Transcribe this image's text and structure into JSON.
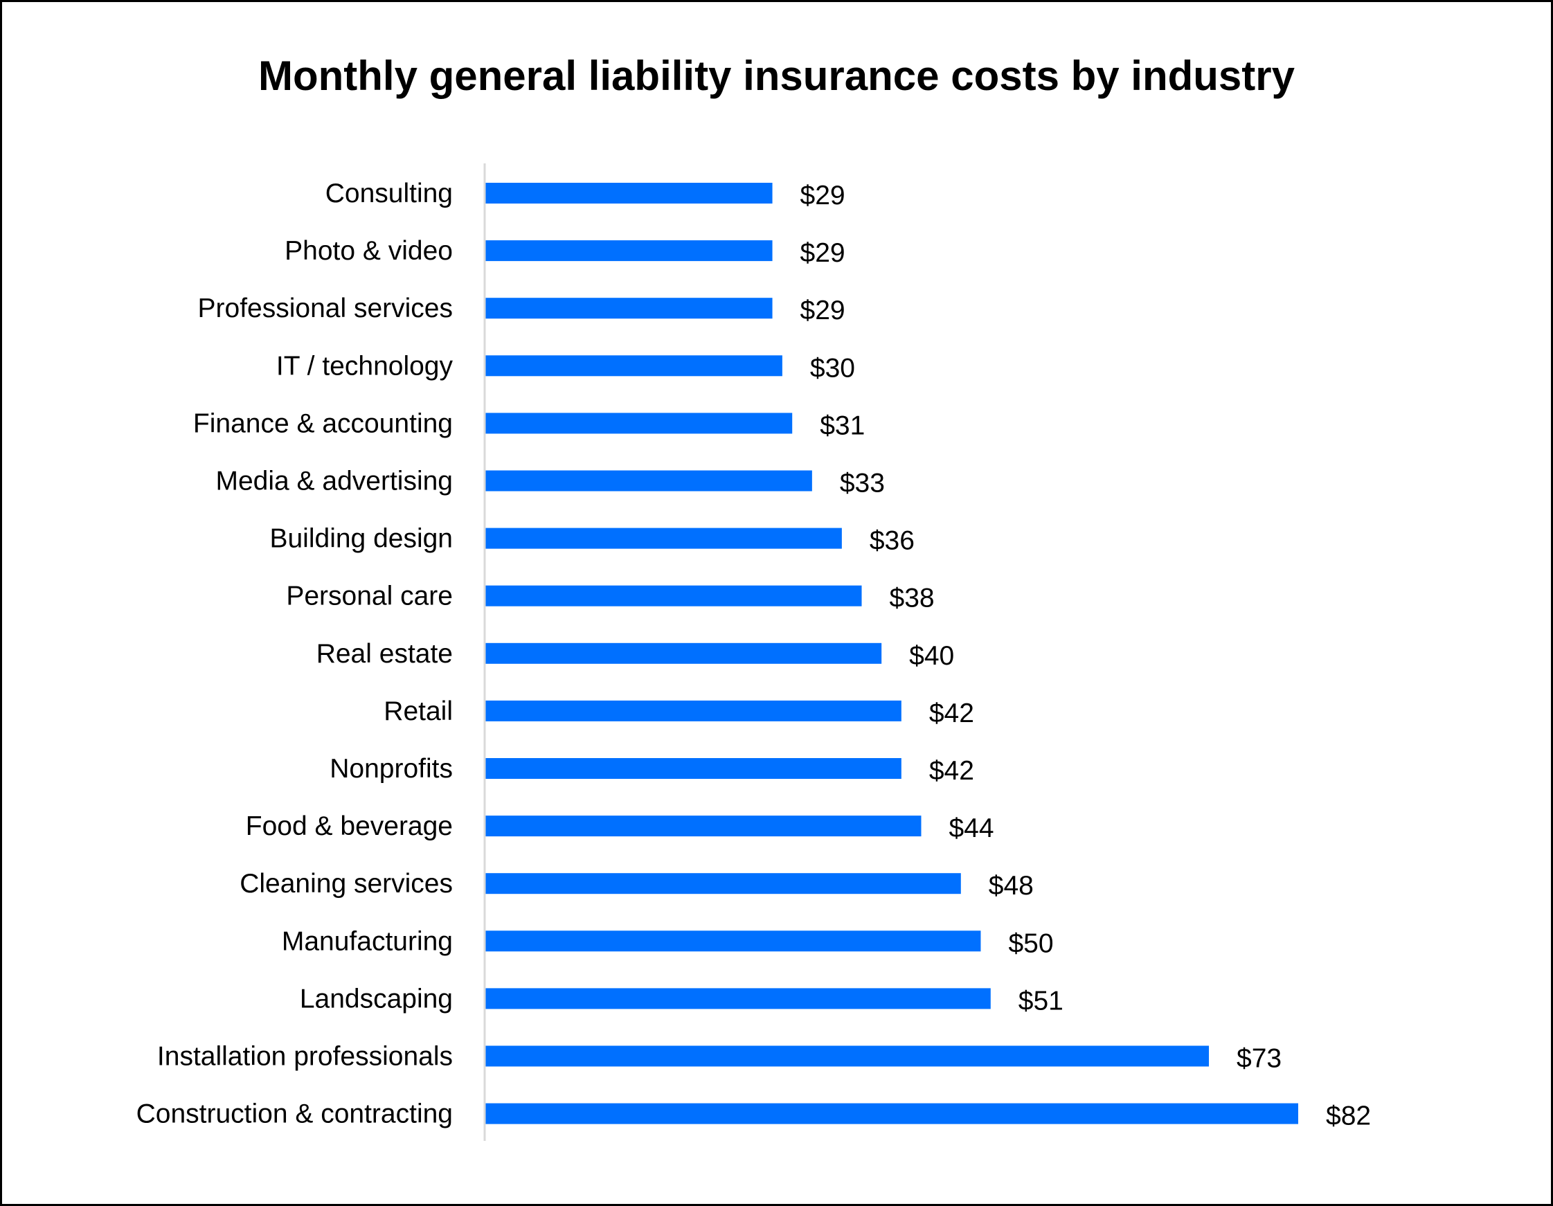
{
  "chart_data": {
    "type": "bar",
    "orientation": "horizontal",
    "title": "Monthly general liability insurance costs by industry",
    "xlabel": "",
    "ylabel": "",
    "categories": [
      "Consulting",
      "Photo & video",
      "Professional services",
      "IT / technology",
      "Finance & accounting",
      "Media & advertising",
      "Building design",
      "Personal care",
      "Real estate",
      "Retail",
      "Nonprofits",
      "Food & beverage",
      "Cleaning services",
      "Manufacturing",
      "Landscaping",
      "Installation professionals",
      "Construction & contracting"
    ],
    "values": [
      29,
      29,
      29,
      30,
      31,
      33,
      36,
      38,
      40,
      42,
      42,
      44,
      48,
      50,
      51,
      73,
      82
    ],
    "data_labels": [
      "$29",
      "$29",
      "$29",
      "$30",
      "$31",
      "$33",
      "$36",
      "$38",
      "$40",
      "$42",
      "$42",
      "$44",
      "$48",
      "$50",
      "$51",
      "$73",
      "$82"
    ],
    "xlim": [
      0,
      82
    ],
    "grid": false,
    "legend": "none",
    "bar_color": "#0070FF",
    "axis_color": "#D9D9D9"
  }
}
